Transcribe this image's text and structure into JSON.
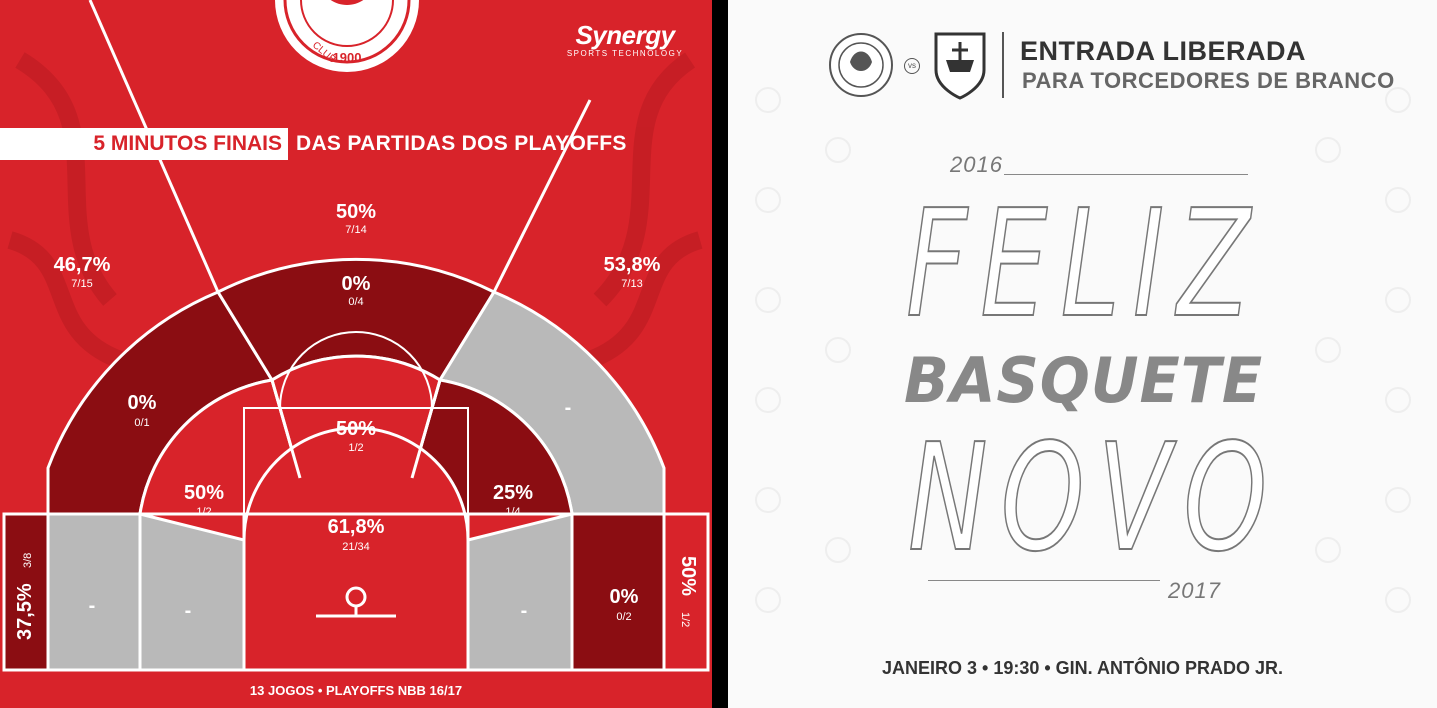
{
  "left": {
    "banner_highlight": "5 MINUTOS FINAIS",
    "banner_rest": "DAS PARTIDAS DOS PLAYOFFS",
    "sponsor_name": "Synergy",
    "sponsor_tagline": "SPORTS TECHNOLOGY",
    "club_year": "1900",
    "club_text": "CLUB",
    "footer": "13 JOGOS • PLAYOFFS NBB 16/17",
    "zones": {
      "top_center": {
        "pct": "50%",
        "ratio": "7/14"
      },
      "top_left": {
        "pct": "46,7%",
        "ratio": "7/15"
      },
      "top_right": {
        "pct": "53,8%",
        "ratio": "7/13"
      },
      "mid_top": {
        "pct": "0%",
        "ratio": "0/4"
      },
      "mid_left": {
        "pct": "0%",
        "ratio": "0/1"
      },
      "mid_right": {
        "pct": "-",
        "ratio": ""
      },
      "paint_top": {
        "pct": "50%",
        "ratio": "1/2"
      },
      "short_left": {
        "pct": "50%",
        "ratio": "1/2"
      },
      "short_right": {
        "pct": "25%",
        "ratio": "1/4"
      },
      "restricted": {
        "pct": "61,8%",
        "ratio": "21/34"
      },
      "corner_left": {
        "pct": "37,5%",
        "ratio": "3/8"
      },
      "corner_right": {
        "pct": "50%",
        "ratio": "1/2"
      },
      "base_left_out": {
        "pct": "-"
      },
      "base_left_in": {
        "pct": "-"
      },
      "base_right_in": {
        "pct": "-"
      },
      "base_right_out": {
        "pct": "0%",
        "ratio": "0/2"
      }
    },
    "colors": {
      "red": "#d8232a",
      "dark": "#8b0d12",
      "gray": "#b9b9b9"
    }
  },
  "right": {
    "title": "ENTRADA LIBERADA",
    "subtitle": "PARA TORCEDORES DE BRANCO",
    "vs": "vs",
    "year_top": "2016",
    "word1": "FELIZ",
    "word2": "BASQUETE",
    "word3": "NOVO",
    "year_bottom": "2017",
    "footer": "JANEIRO 3 • 19:30 • GIN. ANTÔNIO PRADO JR."
  }
}
